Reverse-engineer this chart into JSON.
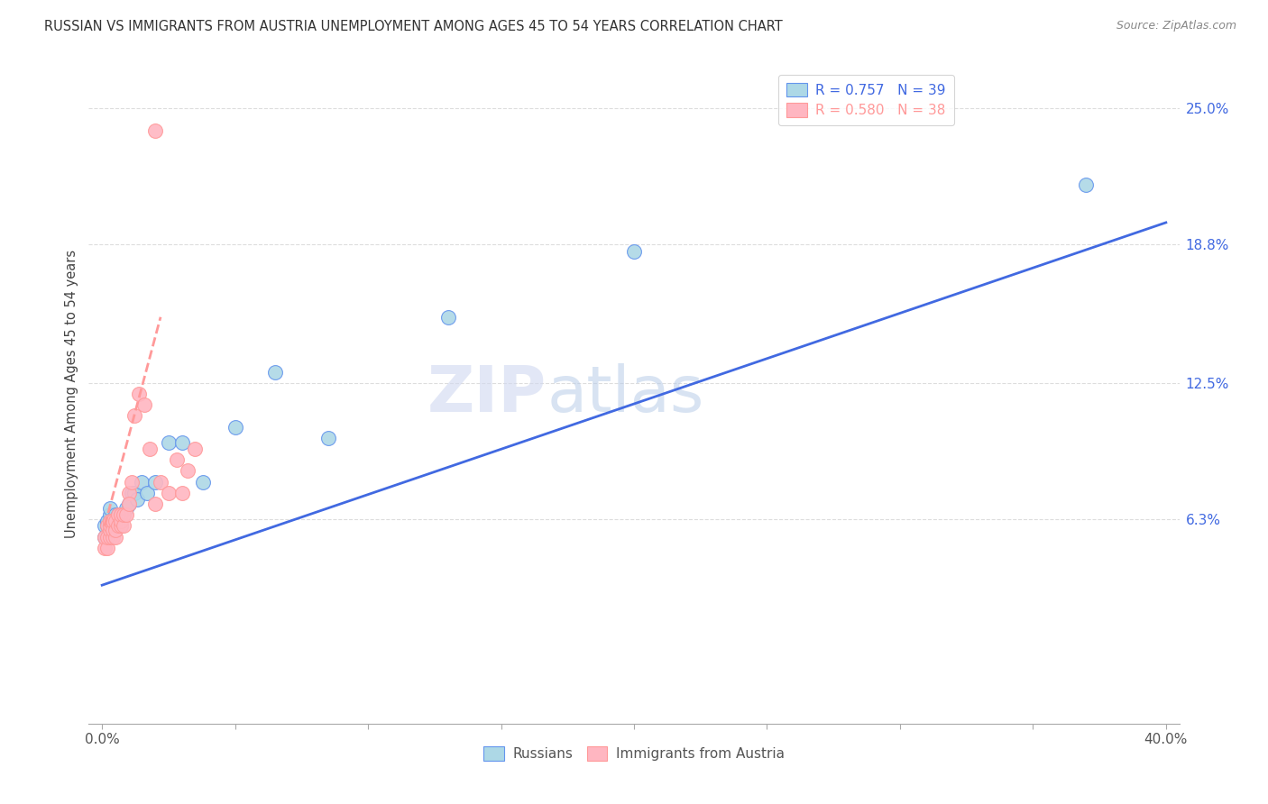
{
  "title": "RUSSIAN VS IMMIGRANTS FROM AUSTRIA UNEMPLOYMENT AMONG AGES 45 TO 54 YEARS CORRELATION CHART",
  "source": "Source: ZipAtlas.com",
  "ylabel": "Unemployment Among Ages 45 to 54 years",
  "xlim": [
    0.0,
    0.4
  ],
  "ylim": [
    -0.03,
    0.27
  ],
  "xtick_positions": [
    0.0,
    0.05,
    0.1,
    0.15,
    0.2,
    0.25,
    0.3,
    0.35,
    0.4
  ],
  "xticklabels_show": [
    "0.0%",
    "40.0%"
  ],
  "ytick_labels_right": [
    "25.0%",
    "18.8%",
    "12.5%",
    "6.3%"
  ],
  "ytick_vals_right": [
    0.25,
    0.188,
    0.125,
    0.063
  ],
  "watermark": "ZIPatlas",
  "legend_r_blue": "0.757",
  "legend_n_blue": "39",
  "legend_r_pink": "0.580",
  "legend_n_pink": "38",
  "blue_face": "#ADD8E6",
  "blue_edge": "#6495ED",
  "pink_face": "#FFB6C1",
  "pink_edge": "#FF9999",
  "blue_line_color": "#4169E1",
  "pink_line_color": "#FF9999",
  "russians_x": [
    0.001,
    0.001,
    0.002,
    0.002,
    0.002,
    0.003,
    0.003,
    0.003,
    0.003,
    0.003,
    0.004,
    0.004,
    0.004,
    0.005,
    0.005,
    0.005,
    0.005,
    0.006,
    0.006,
    0.007,
    0.007,
    0.008,
    0.009,
    0.01,
    0.011,
    0.012,
    0.013,
    0.015,
    0.017,
    0.02,
    0.025,
    0.03,
    0.038,
    0.05,
    0.065,
    0.085,
    0.13,
    0.2,
    0.37
  ],
  "russians_y": [
    0.055,
    0.06,
    0.055,
    0.06,
    0.062,
    0.058,
    0.06,
    0.062,
    0.065,
    0.068,
    0.058,
    0.06,
    0.063,
    0.058,
    0.062,
    0.065,
    0.06,
    0.062,
    0.065,
    0.06,
    0.065,
    0.065,
    0.068,
    0.07,
    0.075,
    0.075,
    0.072,
    0.08,
    0.075,
    0.08,
    0.098,
    0.098,
    0.08,
    0.105,
    0.13,
    0.1,
    0.155,
    0.185,
    0.215
  ],
  "austria_x": [
    0.001,
    0.001,
    0.002,
    0.002,
    0.002,
    0.003,
    0.003,
    0.003,
    0.003,
    0.004,
    0.004,
    0.004,
    0.005,
    0.005,
    0.005,
    0.006,
    0.006,
    0.007,
    0.007,
    0.007,
    0.008,
    0.008,
    0.009,
    0.01,
    0.01,
    0.011,
    0.012,
    0.014,
    0.016,
    0.018,
    0.02,
    0.022,
    0.025,
    0.028,
    0.03,
    0.032,
    0.035,
    0.02
  ],
  "austria_y": [
    0.05,
    0.055,
    0.05,
    0.055,
    0.06,
    0.055,
    0.058,
    0.06,
    0.062,
    0.055,
    0.058,
    0.062,
    0.055,
    0.058,
    0.062,
    0.06,
    0.065,
    0.06,
    0.062,
    0.065,
    0.06,
    0.065,
    0.065,
    0.075,
    0.07,
    0.08,
    0.11,
    0.12,
    0.115,
    0.095,
    0.07,
    0.08,
    0.075,
    0.09,
    0.075,
    0.085,
    0.095,
    0.24
  ],
  "background_color": "#ffffff",
  "grid_color": "#dddddd",
  "blue_trend_x0": 0.0,
  "blue_trend_y0": 0.033,
  "blue_trend_x1": 0.4,
  "blue_trend_y1": 0.198,
  "pink_trend_x0": 0.001,
  "pink_trend_y0": 0.06,
  "pink_trend_x1": 0.022,
  "pink_trend_y1": 0.155
}
